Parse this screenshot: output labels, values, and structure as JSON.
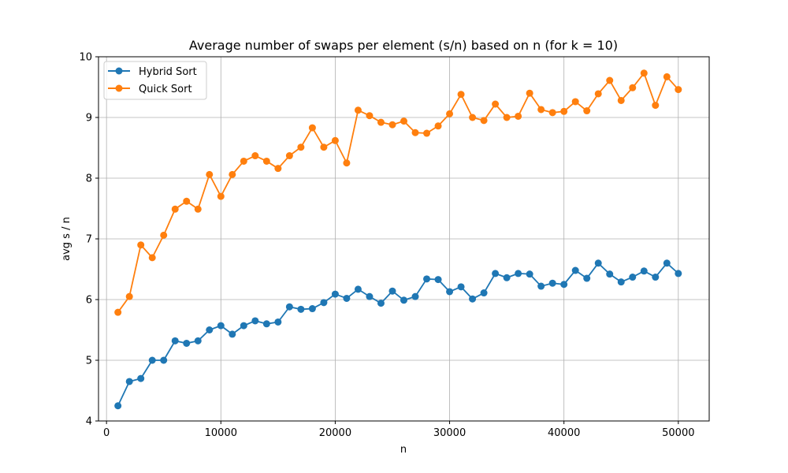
{
  "chart_data": {
    "type": "line",
    "title": "Average number of swaps per element (s/n) based on n (for k = 10)",
    "xlabel": "n",
    "ylabel": "avg s / n",
    "xlim": [
      -700,
      52700
    ],
    "ylim": [
      4,
      10
    ],
    "xticks": [
      0,
      10000,
      20000,
      30000,
      40000,
      50000
    ],
    "xtick_labels": [
      "0",
      "10000",
      "20000",
      "30000",
      "40000",
      "50000"
    ],
    "yticks": [
      4,
      5,
      6,
      7,
      8,
      9,
      10
    ],
    "ytick_labels": [
      "4",
      "5",
      "6",
      "7",
      "8",
      "9",
      "10"
    ],
    "grid": true,
    "legend_position": "top-left",
    "x": [
      1000,
      2000,
      3000,
      4000,
      5000,
      6000,
      7000,
      8000,
      9000,
      10000,
      11000,
      12000,
      13000,
      14000,
      15000,
      16000,
      17000,
      18000,
      19000,
      20000,
      21000,
      22000,
      23000,
      24000,
      25000,
      26000,
      27000,
      28000,
      29000,
      30000,
      31000,
      32000,
      33000,
      34000,
      35000,
      36000,
      37000,
      38000,
      39000,
      40000,
      41000,
      42000,
      43000,
      44000,
      45000,
      46000,
      47000,
      48000,
      49000,
      50000
    ],
    "series": [
      {
        "name": "Hybrid Sort",
        "color": "#1f77b4",
        "marker": "circle",
        "values": [
          4.25,
          4.65,
          4.7,
          5.0,
          5.0,
          5.32,
          5.28,
          5.32,
          5.5,
          5.57,
          5.43,
          5.57,
          5.65,
          5.6,
          5.63,
          5.88,
          5.84,
          5.85,
          5.95,
          6.09,
          6.02,
          6.17,
          6.05,
          5.94,
          6.14,
          5.99,
          6.05,
          6.34,
          6.33,
          6.13,
          6.21,
          6.01,
          6.11,
          6.43,
          6.36,
          6.43,
          6.42,
          6.22,
          6.27,
          6.25,
          6.48,
          6.35,
          6.6,
          6.42,
          6.29,
          6.37,
          6.47,
          6.37,
          6.6,
          6.43
        ]
      },
      {
        "name": "Quick Sort",
        "color": "#ff7f0e",
        "marker": "circle",
        "values": [
          5.79,
          6.05,
          6.9,
          6.69,
          7.06,
          7.49,
          7.62,
          7.49,
          8.06,
          7.7,
          8.06,
          8.28,
          8.37,
          8.28,
          8.16,
          8.37,
          8.51,
          8.83,
          8.51,
          8.62,
          8.25,
          9.12,
          9.03,
          8.92,
          8.88,
          8.94,
          8.75,
          8.74,
          8.86,
          9.06,
          9.38,
          9.0,
          8.95,
          9.22,
          9.0,
          9.02,
          9.4,
          9.13,
          9.08,
          9.1,
          9.26,
          9.11,
          9.39,
          9.61,
          9.28,
          9.49,
          9.73,
          9.2,
          9.67,
          9.46
        ]
      }
    ]
  }
}
